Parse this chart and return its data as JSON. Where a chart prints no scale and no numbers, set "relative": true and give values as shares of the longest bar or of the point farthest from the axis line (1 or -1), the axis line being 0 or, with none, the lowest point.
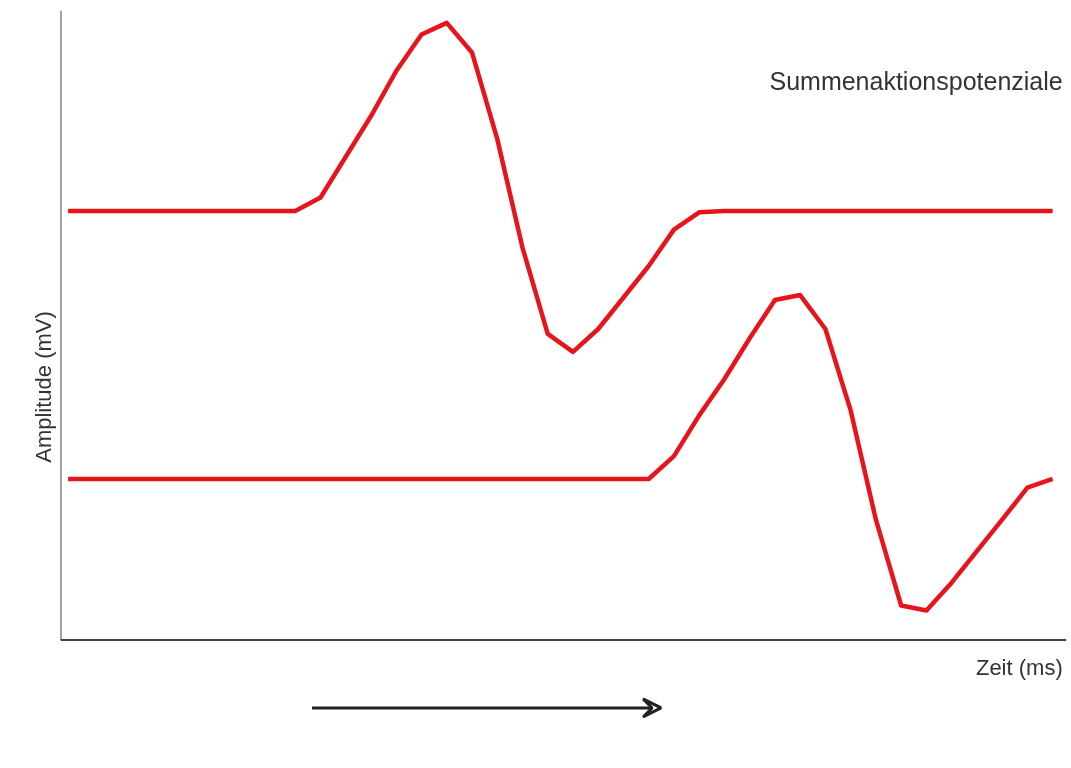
{
  "chart_data": {
    "type": "line",
    "relative": true,
    "ylabel": "Amplitude (mV)",
    "xlabel": "Zeit (ms)",
    "annotations": [
      "Summenaktionspotenziale"
    ],
    "grid": false,
    "marker": "none",
    "line_style": "solid",
    "categories": [
      null,
      null,
      null,
      null,
      null,
      null,
      null,
      null,
      null,
      null,
      null,
      null,
      null,
      null,
      null,
      null,
      null,
      null,
      null,
      null,
      null,
      null,
      null,
      null,
      null,
      null,
      null,
      null,
      null,
      null,
      null,
      null,
      null,
      null,
      null,
      null,
      null,
      null,
      null,
      null
    ],
    "series": [
      {
        "color": "#e8141c",
        "values": [
          0.695,
          0.695,
          0.695,
          0.695,
          0.695,
          0.695,
          0.695,
          0.695,
          0.695,
          0.695,
          0.717,
          0.783,
          0.849,
          0.922,
          0.981,
          1.0,
          0.952,
          0.812,
          0.636,
          0.496,
          0.467,
          0.504,
          0.555,
          0.606,
          0.665,
          0.693,
          0.695,
          0.695,
          0.695,
          0.695,
          0.695,
          0.695,
          0.695,
          0.695,
          0.695,
          0.695,
          0.695,
          0.695,
          0.695,
          0.695
        ]
      },
      {
        "color": "#e8141c",
        "values": [
          0.261,
          0.261,
          0.261,
          0.261,
          0.261,
          0.261,
          0.261,
          0.261,
          0.261,
          0.261,
          0.261,
          0.261,
          0.261,
          0.261,
          0.261,
          0.261,
          0.261,
          0.261,
          0.261,
          0.261,
          0.261,
          0.261,
          0.261,
          0.261,
          0.298,
          0.364,
          0.423,
          0.489,
          0.551,
          0.559,
          0.504,
          0.372,
          0.195,
          0.056,
          0.048,
          0.093,
          0.144,
          0.195,
          0.247,
          0.261
        ]
      }
    ]
  }
}
